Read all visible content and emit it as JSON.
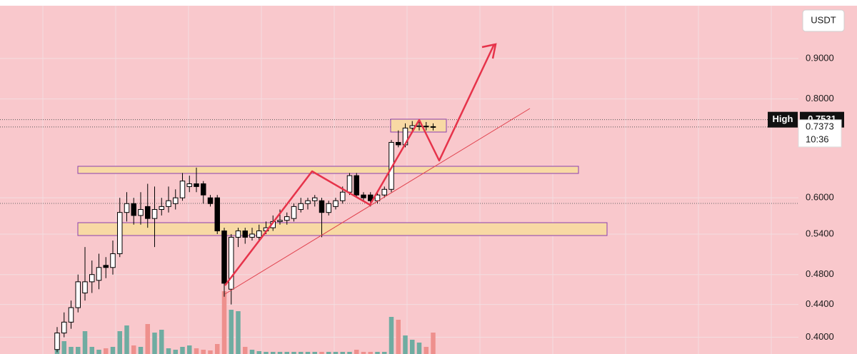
{
  "chart_data": {
    "type": "candlestick",
    "currency": "USDT",
    "log_scale": true,
    "grid": true,
    "ylim": [
      0.381,
      1.049
    ],
    "yticks": [
      {
        "value": 0.9,
        "label": "0.9000"
      },
      {
        "value": 0.8,
        "label": "0.8000"
      },
      {
        "value": 0.6,
        "label": "0.6000"
      },
      {
        "value": 0.54,
        "label": "0.5400"
      },
      {
        "value": 0.48,
        "label": "0.4800"
      },
      {
        "value": 0.44,
        "label": "0.4400"
      },
      {
        "value": 0.4,
        "label": "0.4000"
      }
    ],
    "up_color": "#ffffff",
    "down_color": "#000000",
    "volume_up_color": "#5fa89c",
    "volume_down_color": "#ec8a86",
    "open": [
      0.386,
      0.405,
      0.418,
      0.436,
      0.455,
      0.47,
      0.472,
      0.493,
      0.49,
      0.51,
      0.575,
      0.59,
      0.57,
      0.585,
      0.565,
      0.58,
      0.585,
      0.59,
      0.6,
      0.62,
      0.625,
      0.625,
      0.6,
      0.6,
      0.545,
      0.46,
      0.535,
      0.545,
      0.535,
      0.535,
      0.545,
      0.55,
      0.56,
      0.562,
      0.565,
      0.58,
      0.59,
      0.595,
      0.595,
      0.575,
      0.585,
      0.595,
      0.61,
      0.64,
      0.605,
      0.605,
      0.595,
      0.605,
      0.615,
      0.705,
      0.7,
      0.735,
      0.738,
      0.739,
      0.738
    ],
    "high": [
      0.412,
      0.43,
      0.445,
      0.48,
      0.52,
      0.5,
      0.51,
      0.505,
      0.53,
      0.6,
      0.61,
      0.6,
      0.61,
      0.625,
      0.62,
      0.6,
      0.62,
      0.615,
      0.645,
      0.64,
      0.655,
      0.63,
      0.605,
      0.605,
      0.55,
      0.54,
      0.55,
      0.55,
      0.55,
      0.555,
      0.56,
      0.57,
      0.58,
      0.575,
      0.59,
      0.6,
      0.6,
      0.605,
      0.6,
      0.595,
      0.6,
      0.62,
      0.645,
      0.645,
      0.61,
      0.61,
      0.61,
      0.62,
      0.71,
      0.73,
      0.745,
      0.75,
      0.7531,
      0.748,
      0.745
    ],
    "low": [
      0.383,
      0.4,
      0.41,
      0.43,
      0.445,
      0.455,
      0.46,
      0.475,
      0.48,
      0.505,
      0.56,
      0.555,
      0.555,
      0.55,
      0.52,
      0.57,
      0.575,
      0.58,
      0.595,
      0.61,
      0.61,
      0.59,
      0.585,
      0.54,
      0.45,
      0.44,
      0.52,
      0.525,
      0.53,
      0.53,
      0.54,
      0.545,
      0.555,
      0.555,
      0.56,
      0.575,
      0.58,
      0.585,
      0.535,
      0.57,
      0.58,
      0.59,
      0.605,
      0.6,
      0.595,
      0.585,
      0.59,
      0.6,
      0.61,
      0.695,
      0.695,
      0.73,
      0.73,
      0.73,
      0.73
    ],
    "close": [
      0.405,
      0.418,
      0.436,
      0.47,
      0.47,
      0.48,
      0.49,
      0.49,
      0.51,
      0.575,
      0.59,
      0.57,
      0.58,
      0.565,
      0.58,
      0.585,
      0.595,
      0.6,
      0.63,
      0.625,
      0.62,
      0.605,
      0.59,
      0.545,
      0.468,
      0.535,
      0.545,
      0.535,
      0.54,
      0.545,
      0.55,
      0.56,
      0.562,
      0.568,
      0.585,
      0.59,
      0.595,
      0.6,
      0.575,
      0.59,
      0.595,
      0.61,
      0.64,
      0.605,
      0.6,
      0.595,
      0.605,
      0.615,
      0.705,
      0.7,
      0.735,
      0.74,
      0.74,
      0.738,
      0.7373
    ],
    "volume": [
      18,
      18,
      10,
      10,
      32,
      10,
      6,
      8,
      10,
      32,
      40,
      12,
      10,
      42,
      30,
      34,
      8,
      6,
      10,
      12,
      8,
      6,
      5,
      14,
      88,
      62,
      60,
      10,
      6,
      4,
      3,
      3,
      3,
      3,
      3,
      3,
      3,
      3,
      3,
      3,
      3,
      3,
      3,
      6,
      3,
      3,
      3,
      3,
      52,
      48,
      26,
      20,
      16,
      10,
      30
    ],
    "high_label": "High",
    "high_value": 0.7531,
    "last_price": 0.7373,
    "countdown": "10:36"
  }
}
